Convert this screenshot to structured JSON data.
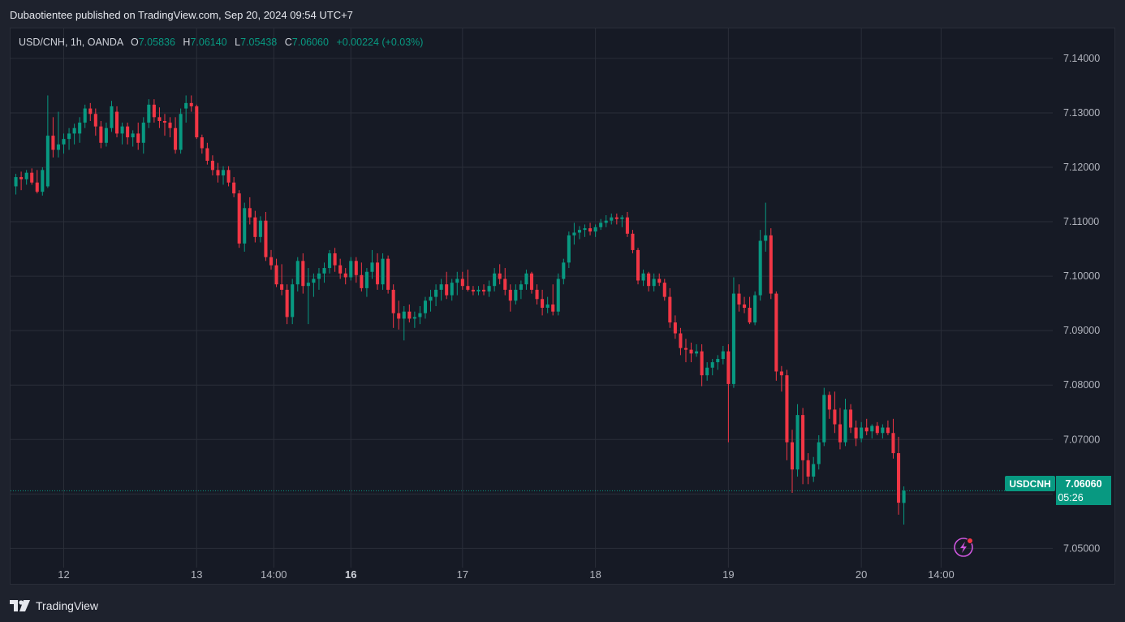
{
  "header": {
    "published": "Dubaotientee published on TradingView.com, Sep 20, 2024 09:54 UTC+7"
  },
  "legend": {
    "symbol": "USD/CNH, 1h, OANDA",
    "o_label": "O",
    "o_value": "7.05836",
    "h_label": "H",
    "h_value": "7.06140",
    "l_label": "L",
    "l_value": "7.05438",
    "c_label": "C",
    "c_value": "7.06060",
    "change": "+0.00224 (+0.03%)"
  },
  "price_tag": {
    "symbol": "USDCNH",
    "price": "7.06060",
    "countdown": "05:26"
  },
  "footer": {
    "brand": "TradingView"
  },
  "colors": {
    "up": "#089981",
    "down": "#f23645",
    "background": "#161a25",
    "grid": "#2a2e39",
    "text": "#b2b5be",
    "alert": "#ce56de"
  },
  "icons": {
    "alert": "lightning-alert-icon",
    "logo": "tradingview-logo-icon"
  },
  "chart_data": {
    "type": "candlestick",
    "symbol": "USD/CNH",
    "interval": "1h",
    "ylim": [
      7.0435,
      7.1455
    ],
    "y_ticks": [
      "7.14000",
      "7.13000",
      "7.12000",
      "7.11000",
      "7.10000",
      "7.09000",
      "7.08000",
      "7.07000",
      "7.06000",
      "7.05000"
    ],
    "x_ticks": [
      {
        "label": "12",
        "x": 9,
        "bold": false
      },
      {
        "label": "13",
        "x": 34,
        "bold": false
      },
      {
        "label": "14:00",
        "x": 48.5,
        "bold": false
      },
      {
        "label": "16",
        "x": 63,
        "bold": true
      },
      {
        "label": "17",
        "x": 84,
        "bold": false
      },
      {
        "label": "18",
        "x": 109,
        "bold": false
      },
      {
        "label": "19",
        "x": 134,
        "bold": false
      },
      {
        "label": "20",
        "x": 159,
        "bold": false
      },
      {
        "label": "14:00",
        "x": 174,
        "bold": false
      }
    ],
    "x_range": [
      -1,
      195
    ],
    "last_price": 7.0606,
    "candles": [
      [
        0,
        7.1165,
        7.1188,
        7.115,
        7.1182
      ],
      [
        1,
        7.1182,
        7.1192,
        7.1158,
        7.1178
      ],
      [
        2,
        7.1178,
        7.1195,
        7.1168,
        7.119
      ],
      [
        3,
        7.119,
        7.1198,
        7.1168,
        7.1172
      ],
      [
        4,
        7.1172,
        7.1195,
        7.1152,
        7.1155
      ],
      [
        5,
        7.1155,
        7.12,
        7.1148,
        7.1195
      ],
      [
        6,
        7.1165,
        7.1332,
        7.1162,
        7.1258
      ],
      [
        7,
        7.1258,
        7.1292,
        7.1218,
        7.1232
      ],
      [
        8,
        7.1232,
        7.1302,
        7.1218,
        7.1242
      ],
      [
        9,
        7.1242,
        7.1262,
        7.1225,
        7.1252
      ],
      [
        10,
        7.1252,
        7.1272,
        7.1232,
        7.1262
      ],
      [
        11,
        7.1262,
        7.128,
        7.1242,
        7.1272
      ],
      [
        12,
        7.1262,
        7.1292,
        7.1245,
        7.1282
      ],
      [
        13,
        7.1282,
        7.1315,
        7.1272,
        7.1308
      ],
      [
        14,
        7.1308,
        7.1318,
        7.1285,
        7.1298
      ],
      [
        15,
        7.1298,
        7.1308,
        7.1258,
        7.1275
      ],
      [
        16,
        7.1275,
        7.1285,
        7.1235,
        7.1245
      ],
      [
        17,
        7.1245,
        7.1282,
        7.1238,
        7.1272
      ],
      [
        18,
        7.1272,
        7.1322,
        7.1265,
        7.1312
      ],
      [
        19,
        7.1302,
        7.1312,
        7.1255,
        7.1262
      ],
      [
        20,
        7.1262,
        7.1282,
        7.1242,
        7.1275
      ],
      [
        21,
        7.1275,
        7.1282,
        7.1242,
        7.1255
      ],
      [
        22,
        7.1255,
        7.1268,
        7.1238,
        7.1262
      ],
      [
        23,
        7.1262,
        7.1282,
        7.1232,
        7.1245
      ],
      [
        24,
        7.1245,
        7.1292,
        7.1225,
        7.1282
      ],
      [
        25,
        7.1282,
        7.1325,
        7.1272,
        7.1315
      ],
      [
        26,
        7.1315,
        7.1325,
        7.1282,
        7.1292
      ],
      [
        27,
        7.1292,
        7.131,
        7.1272,
        7.1285
      ],
      [
        28,
        7.1285,
        7.1298,
        7.1258,
        7.1282
      ],
      [
        29,
        7.1282,
        7.1292,
        7.1255,
        7.1272
      ],
      [
        30,
        7.1272,
        7.1292,
        7.1225,
        7.1232
      ],
      [
        31,
        7.1232,
        7.1308,
        7.1225,
        7.1298
      ],
      [
        32,
        7.1308,
        7.1332,
        7.1282,
        7.1318
      ],
      [
        33,
        7.1318,
        7.1332,
        7.1302,
        7.1312
      ],
      [
        34,
        7.1312,
        7.1315,
        7.1252,
        7.1255
      ],
      [
        35,
        7.1255,
        7.126,
        7.1225,
        7.1235
      ],
      [
        36,
        7.1235,
        7.1245,
        7.1205,
        7.1212
      ],
      [
        37,
        7.1212,
        7.1222,
        7.1185,
        7.1195
      ],
      [
        38,
        7.1195,
        7.1208,
        7.1172,
        7.1185
      ],
      [
        39,
        7.1185,
        7.1202,
        7.1168,
        7.1195
      ],
      [
        40,
        7.1195,
        7.1202,
        7.1165,
        7.1172
      ],
      [
        41,
        7.1172,
        7.1182,
        7.1145,
        7.1152
      ],
      [
        42,
        7.1152,
        7.1158,
        7.1052,
        7.106
      ],
      [
        43,
        7.106,
        7.1135,
        7.1045,
        7.1125
      ],
      [
        44,
        7.1125,
        7.1145,
        7.1095,
        7.1108
      ],
      [
        45,
        7.1108,
        7.112,
        7.1062,
        7.1072
      ],
      [
        46,
        7.1072,
        7.111,
        7.1062,
        7.1102
      ],
      [
        47,
        7.1102,
        7.1118,
        7.1028,
        7.1035
      ],
      [
        48,
        7.1035,
        7.1048,
        7.1012,
        7.102
      ],
      [
        49,
        7.102,
        7.1032,
        7.098,
        7.0985
      ],
      [
        50,
        7.0985,
        7.1022,
        7.0965,
        7.0975
      ],
      [
        51,
        7.0975,
        7.0985,
        7.0912,
        7.0925
      ],
      [
        52,
        7.0925,
        7.0995,
        7.0912,
        7.0985
      ],
      [
        53,
        7.0985,
        7.1035,
        7.0972,
        7.1028
      ],
      [
        54,
        7.1028,
        7.1042,
        7.0968,
        7.0982
      ],
      [
        55,
        7.0982,
        7.1015,
        7.0912,
        7.0988
      ],
      [
        56,
        7.0988,
        7.1005,
        7.0962,
        7.0995
      ],
      [
        57,
        7.0995,
        7.1015,
        7.0975,
        7.1005
      ],
      [
        58,
        7.1005,
        7.1025,
        7.0988,
        7.1015
      ],
      [
        59,
        7.1015,
        7.1048,
        7.1005,
        7.1042
      ],
      [
        60,
        7.1042,
        7.1052,
        7.1008,
        7.102
      ],
      [
        61,
        7.102,
        7.1032,
        7.0995,
        7.1005
      ],
      [
        62,
        7.1005,
        7.1015,
        7.0985,
        7.0998
      ],
      [
        63,
        7.0998,
        7.1035,
        7.0992,
        7.1028
      ],
      [
        64,
        7.1028,
        7.1035,
        7.0988,
        7.1002
      ],
      [
        65,
        7.1002,
        7.1025,
        7.0972,
        7.0978
      ],
      [
        66,
        7.0978,
        7.1015,
        7.0962,
        7.1008
      ],
      [
        67,
        7.1008,
        7.1048,
        7.0995,
        7.1025
      ],
      [
        68,
        7.1025,
        7.1042,
        7.0975,
        7.0985
      ],
      [
        69,
        7.0985,
        7.1042,
        7.0975,
        7.1032
      ],
      [
        70,
        7.1032,
        7.1038,
        7.0968,
        7.0975
      ],
      [
        71,
        7.0975,
        7.0985,
        7.0905,
        7.0932
      ],
      [
        72,
        7.0932,
        7.0955,
        7.0902,
        7.0922
      ],
      [
        73,
        7.0922,
        7.0945,
        7.0882,
        7.0935
      ],
      [
        74,
        7.0935,
        7.0948,
        7.0915,
        7.0922
      ],
      [
        75,
        7.0922,
        7.0935,
        7.0905,
        7.0925
      ],
      [
        76,
        7.0925,
        7.0945,
        7.0912,
        7.0932
      ],
      [
        77,
        7.0932,
        7.0962,
        7.0922,
        7.0955
      ],
      [
        78,
        7.0955,
        7.0975,
        7.0935,
        7.0962
      ],
      [
        79,
        7.0962,
        7.0985,
        7.0945,
        7.0975
      ],
      [
        80,
        7.0975,
        7.0995,
        7.0955,
        7.0985
      ],
      [
        81,
        7.0985,
        7.1008,
        7.0958,
        7.0965
      ],
      [
        82,
        7.0965,
        7.0995,
        7.0955,
        7.0988
      ],
      [
        83,
        7.0988,
        7.1008,
        7.0965,
        7.0995
      ],
      [
        84,
        7.0995,
        7.1008,
        7.0975,
        7.0982
      ],
      [
        85,
        7.0982,
        7.1012,
        7.0972,
        7.0975
      ],
      [
        86,
        7.0975,
        7.0982,
        7.0965,
        7.0972
      ],
      [
        87,
        7.0972,
        7.0982,
        7.0965,
        7.0975
      ],
      [
        88,
        7.0975,
        7.0985,
        7.0965,
        7.0972
      ],
      [
        89,
        7.0972,
        7.0992,
        7.0962,
        7.0982
      ],
      [
        90,
        7.0982,
        7.1015,
        7.0972,
        7.1005
      ],
      [
        91,
        7.1005,
        7.1022,
        7.0985,
        7.0995
      ],
      [
        92,
        7.0995,
        7.1015,
        7.0965,
        7.0975
      ],
      [
        93,
        7.0975,
        7.0985,
        7.0935,
        7.0955
      ],
      [
        94,
        7.0955,
        7.0985,
        7.0948,
        7.0975
      ],
      [
        95,
        7.0975,
        7.0992,
        7.0958,
        7.0985
      ],
      [
        96,
        7.0985,
        7.1012,
        7.0975,
        7.1005
      ],
      [
        97,
        7.1005,
        7.1008,
        7.0968,
        7.0975
      ],
      [
        98,
        7.0975,
        7.0985,
        7.0948,
        7.0958
      ],
      [
        99,
        7.0958,
        7.0975,
        7.0928,
        7.0942
      ],
      [
        100,
        7.0942,
        7.0962,
        7.0932,
        7.0948
      ],
      [
        101,
        7.0948,
        7.0985,
        7.0928,
        7.0935
      ],
      [
        102,
        7.0935,
        7.1005,
        7.0928,
        7.0995
      ],
      [
        103,
        7.0995,
        7.1032,
        7.0985,
        7.1025
      ],
      [
        104,
        7.1025,
        7.1082,
        7.1015,
        7.1075
      ],
      [
        105,
        7.1075,
        7.1098,
        7.1058,
        7.108
      ],
      [
        106,
        7.108,
        7.1092,
        7.1068,
        7.1085
      ],
      [
        107,
        7.1085,
        7.1095,
        7.1072,
        7.1088
      ],
      [
        108,
        7.1088,
        7.1098,
        7.1075,
        7.1082
      ],
      [
        109,
        7.1082,
        7.1095,
        7.1072,
        7.109
      ],
      [
        110,
        7.109,
        7.1105,
        7.1085,
        7.1098
      ],
      [
        111,
        7.1098,
        7.1112,
        7.109,
        7.1102
      ],
      [
        112,
        7.1102,
        7.1115,
        7.1095,
        7.1108
      ],
      [
        113,
        7.1108,
        7.1115,
        7.1095,
        7.1105
      ],
      [
        114,
        7.1105,
        7.1112,
        7.109,
        7.1108
      ],
      [
        115,
        7.1108,
        7.1118,
        7.1072,
        7.1078
      ],
      [
        116,
        7.1078,
        7.1085,
        7.1042,
        7.1048
      ],
      [
        117,
        7.1048,
        7.1052,
        7.0985,
        7.0992
      ],
      [
        118,
        7.0992,
        7.1012,
        7.0982,
        7.1005
      ],
      [
        119,
        7.1005,
        7.1008,
        7.0972,
        7.0982
      ],
      [
        120,
        7.0982,
        7.1005,
        7.0972,
        7.0995
      ],
      [
        121,
        7.0995,
        7.1005,
        7.0982,
        7.0988
      ],
      [
        122,
        7.0988,
        7.0995,
        7.0955,
        7.0962
      ],
      [
        123,
        7.0962,
        7.0978,
        7.0905,
        7.0915
      ],
      [
        124,
        7.0915,
        7.0928,
        7.0885,
        7.0895
      ],
      [
        125,
        7.0895,
        7.0905,
        7.0855,
        7.0868
      ],
      [
        126,
        7.0868,
        7.0885,
        7.0842,
        7.0865
      ],
      [
        127,
        7.0865,
        7.0878,
        7.0842,
        7.0858
      ],
      [
        128,
        7.0858,
        7.0875,
        7.0852,
        7.0862
      ],
      [
        129,
        7.0862,
        7.0875,
        7.0798,
        7.0818
      ],
      [
        130,
        7.0818,
        7.0842,
        7.0808,
        7.0832
      ],
      [
        131,
        7.0832,
        7.0848,
        7.0818,
        7.0842
      ],
      [
        132,
        7.0842,
        7.0855,
        7.0828,
        7.0848
      ],
      [
        133,
        7.0848,
        7.0872,
        7.0838,
        7.0862
      ],
      [
        134,
        7.0862,
        7.0875,
        7.0695,
        7.0802
      ],
      [
        135,
        7.0802,
        7.0998,
        7.0795,
        7.0968
      ],
      [
        136,
        7.0968,
        7.0985,
        7.0935,
        7.0948
      ],
      [
        137,
        7.0948,
        7.0962,
        7.0932,
        7.0942
      ],
      [
        138,
        7.0942,
        7.0962,
        7.0912,
        7.0915
      ],
      [
        139,
        7.0915,
        7.0972,
        7.091,
        7.0965
      ],
      [
        140,
        7.0965,
        7.1085,
        7.0955,
        7.1065
      ],
      [
        141,
        7.1065,
        7.1135,
        7.1045,
        7.1075
      ],
      [
        142,
        7.1075,
        7.1088,
        7.0958,
        7.0968
      ],
      [
        143,
        7.0968,
        7.0972,
        7.0808,
        7.0825
      ],
      [
        144,
        7.0825,
        7.0835,
        7.0788,
        7.0818
      ],
      [
        145,
        7.0818,
        7.0828,
        7.0662,
        7.0695
      ],
      [
        146,
        7.0695,
        7.0718,
        7.0602,
        7.0645
      ],
      [
        147,
        7.0645,
        7.0765,
        7.0632,
        7.0745
      ],
      [
        148,
        7.0745,
        7.0758,
        7.0618,
        7.0662
      ],
      [
        149,
        7.0662,
        7.0675,
        7.0618,
        7.0632
      ],
      [
        150,
        7.0632,
        7.0668,
        7.0622,
        7.0655
      ],
      [
        151,
        7.0655,
        7.0708,
        7.0645,
        7.0695
      ],
      [
        152,
        7.0695,
        7.0795,
        7.0688,
        7.0782
      ],
      [
        153,
        7.0782,
        7.0788,
        7.0738,
        7.0755
      ],
      [
        154,
        7.0755,
        7.0788,
        7.0712,
        7.0728
      ],
      [
        155,
        7.0728,
        7.0758,
        7.0682,
        7.0695
      ],
      [
        156,
        7.0695,
        7.0775,
        7.0688,
        7.0755
      ],
      [
        157,
        7.0755,
        7.0765,
        7.0712,
        7.0722
      ],
      [
        158,
        7.0722,
        7.0735,
        7.0688,
        7.0702
      ],
      [
        159,
        7.0702,
        7.0732,
        7.0695,
        7.0722
      ],
      [
        160,
        7.0722,
        7.0738,
        7.0708,
        7.0715
      ],
      [
        161,
        7.0715,
        7.0728,
        7.0702,
        7.0725
      ],
      [
        162,
        7.0725,
        7.0732,
        7.0708,
        7.0712
      ],
      [
        163,
        7.0712,
        7.0728,
        7.0702,
        7.0722
      ],
      [
        164,
        7.0722,
        7.0735,
        7.0708,
        7.0712
      ],
      [
        165,
        7.0712,
        7.0738,
        7.0665,
        7.0675
      ],
      [
        166,
        7.0675,
        7.0705,
        7.0562,
        7.0584
      ],
      [
        167,
        7.05836,
        7.0614,
        7.05438,
        7.0606
      ]
    ]
  }
}
